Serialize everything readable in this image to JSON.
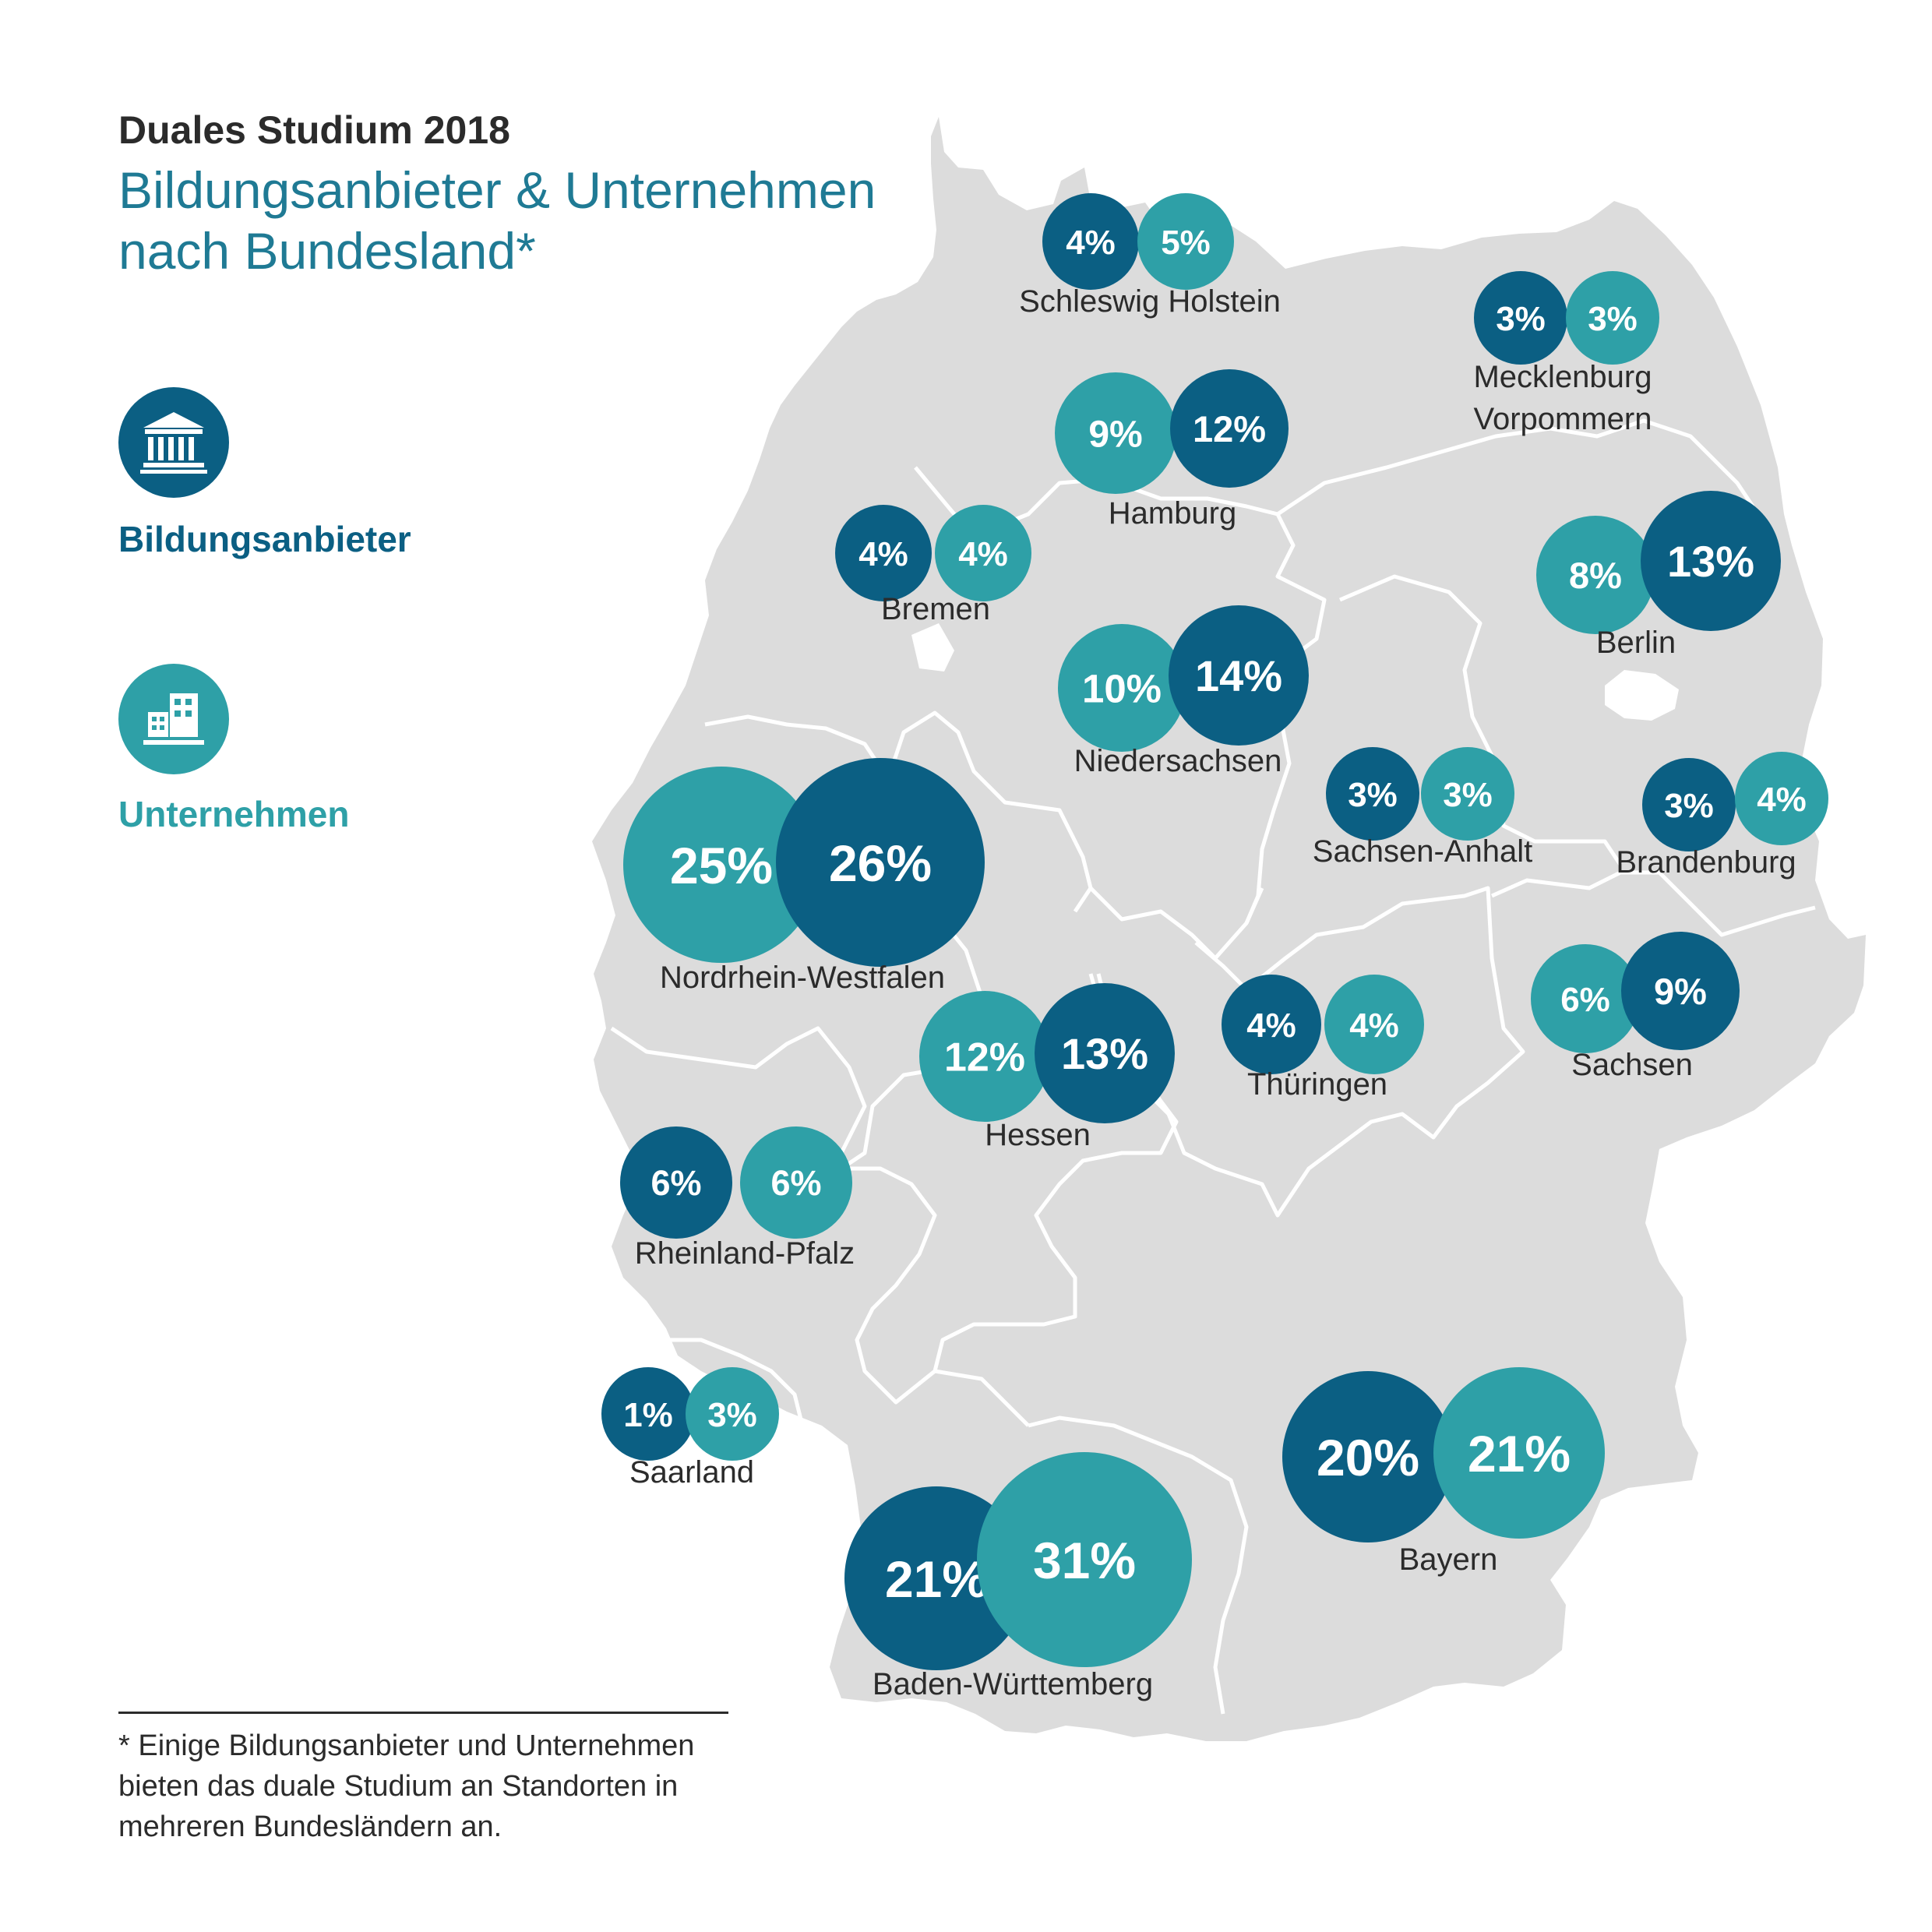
{
  "title": "Duales Studium 2018",
  "subtitle_line1": "Bildungsanbieter & Unternehmen",
  "subtitle_line2": "nach Bundesland*",
  "legend": {
    "providers": {
      "label": "Bildungsanbieter",
      "icon": "building-columns-icon",
      "color": "#0b5f83"
    },
    "companies": {
      "label": "Unternehmen",
      "icon": "office-buildings-icon",
      "color": "#2ea0a7"
    }
  },
  "colors": {
    "map_fill": "#dcdcdc",
    "border": "#ffffff",
    "label_text": "#2b2b2b"
  },
  "footnote": {
    "line1": "* Einige Bildungsanbieter und Unternehmen",
    "line2": "bieten das duale Studium an Standorten in",
    "line3": "mehreren Bundesländern an."
  },
  "states": [
    {
      "key": "sh",
      "label_lines": [
        "Schleswig Holstein"
      ],
      "providers": "4%",
      "companies": "5%",
      "providers_value": 4,
      "companies_value": 5
    },
    {
      "key": "mv",
      "label_lines": [
        "Mecklenburg",
        "Vorpommern"
      ],
      "providers": "3%",
      "companies": "3%",
      "providers_value": 3,
      "companies_value": 3
    },
    {
      "key": "hh",
      "label_lines": [
        "Hamburg"
      ],
      "providers": "12%",
      "companies": "9%",
      "providers_value": 12,
      "companies_value": 9
    },
    {
      "key": "hb",
      "label_lines": [
        "Bremen"
      ],
      "providers": "4%",
      "companies": "4%",
      "providers_value": 4,
      "companies_value": 4
    },
    {
      "key": "be",
      "label_lines": [
        "Berlin"
      ],
      "providers": "13%",
      "companies": "8%",
      "providers_value": 13,
      "companies_value": 8
    },
    {
      "key": "ni",
      "label_lines": [
        "Niedersachsen"
      ],
      "providers": "14%",
      "companies": "10%",
      "providers_value": 14,
      "companies_value": 10
    },
    {
      "key": "st",
      "label_lines": [
        "Sachsen-Anhalt"
      ],
      "providers": "3%",
      "companies": "3%",
      "providers_value": 3,
      "companies_value": 3
    },
    {
      "key": "bb",
      "label_lines": [
        "Brandenburg"
      ],
      "providers": "3%",
      "companies": "4%",
      "providers_value": 3,
      "companies_value": 4
    },
    {
      "key": "nw",
      "label_lines": [
        "Nordrhein-Westfalen"
      ],
      "providers": "26%",
      "companies": "25%",
      "providers_value": 26,
      "companies_value": 25
    },
    {
      "key": "sn",
      "label_lines": [
        "Sachsen"
      ],
      "providers": "9%",
      "companies": "6%",
      "providers_value": 9,
      "companies_value": 6
    },
    {
      "key": "th",
      "label_lines": [
        "Thüringen"
      ],
      "providers": "4%",
      "companies": "4%",
      "providers_value": 4,
      "companies_value": 4
    },
    {
      "key": "he",
      "label_lines": [
        "Hessen"
      ],
      "providers": "13%",
      "companies": "12%",
      "providers_value": 13,
      "companies_value": 12
    },
    {
      "key": "rp",
      "label_lines": [
        "Rheinland-Pfalz"
      ],
      "providers": "6%",
      "companies": "6%",
      "providers_value": 6,
      "companies_value": 6
    },
    {
      "key": "sl",
      "label_lines": [
        "Saarland"
      ],
      "providers": "1%",
      "companies": "3%",
      "providers_value": 1,
      "companies_value": 3
    },
    {
      "key": "by",
      "label_lines": [
        "Bayern"
      ],
      "providers": "20%",
      "companies": "21%",
      "providers_value": 20,
      "companies_value": 21
    },
    {
      "key": "bw",
      "label_lines": [
        "Baden-Württemberg"
      ],
      "providers": "21%",
      "companies": "31%",
      "providers_value": 21,
      "companies_value": 31
    }
  ]
}
